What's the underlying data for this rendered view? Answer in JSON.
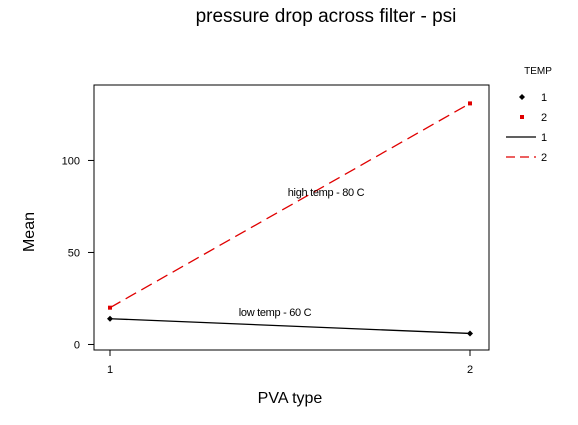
{
  "chart_data": {
    "type": "line",
    "title": "pressure drop across filter - psi",
    "xlabel": "PVA type",
    "ylabel": "Mean",
    "categories": [
      "1",
      "2"
    ],
    "x_ticks": [
      "1",
      "2"
    ],
    "y_ticks": [
      "0",
      "50",
      "100"
    ],
    "ylim": [
      -3,
      141
    ],
    "grid": false,
    "legend_position": "right",
    "legend_title": "TEMP",
    "series": [
      {
        "name": "1",
        "values": [
          14,
          6
        ],
        "color": "#000000",
        "line_style": "solid",
        "marker": "diamond"
      },
      {
        "name": "2",
        "values": [
          20,
          131
        ],
        "color": "#e00000",
        "line_style": "dashed",
        "marker": "square"
      }
    ],
    "annotations": [
      {
        "text": "high temp -  80 C",
        "series": "2"
      },
      {
        "text": "low temp - 60 C",
        "series": "1"
      }
    ]
  }
}
